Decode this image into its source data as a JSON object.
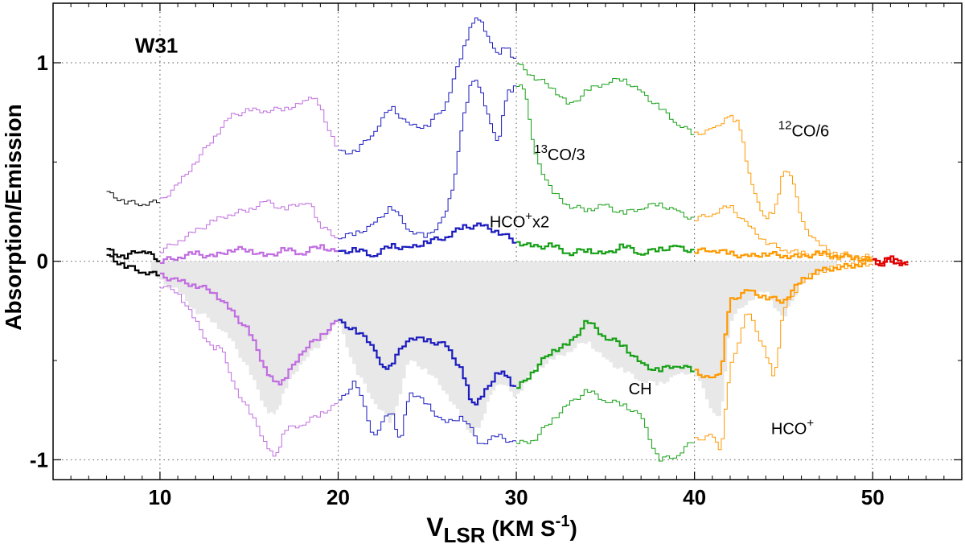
{
  "chart_data": {
    "type": "line",
    "title": "W31",
    "xlabel": {
      "main": "V",
      "sub": "LSR",
      "paren_open": " (KM S",
      "sup": "-1",
      "paren_close": ")"
    },
    "ylabel": "Absorption/Emission",
    "xlim": [
      4,
      55
    ],
    "ylim": [
      -1.1,
      1.3
    ],
    "x_major_ticks": [
      10,
      20,
      30,
      40,
      50
    ],
    "x_minor_ticks": [
      5,
      6,
      7,
      8,
      9,
      11,
      12,
      13,
      14,
      15,
      16,
      17,
      18,
      19,
      21,
      22,
      23,
      24,
      25,
      26,
      27,
      28,
      29,
      31,
      32,
      33,
      34,
      35,
      36,
      37,
      38,
      39,
      41,
      42,
      43,
      44,
      45,
      46,
      47,
      48,
      49,
      51,
      52,
      53,
      54
    ],
    "y_major_ticks": [
      -1,
      0,
      1
    ],
    "y_minor_ticks": [
      -0.5,
      0.5
    ],
    "x_tick_labels": [
      "10",
      "20",
      "30",
      "40",
      "50"
    ],
    "y_tick_labels": [
      "-1",
      "0",
      "1"
    ],
    "grid": true,
    "segment_colors": [
      {
        "range": [
          7,
          10
        ],
        "color": "#000000"
      },
      {
        "range": [
          10,
          20
        ],
        "color": "#c06de0"
      },
      {
        "range": [
          20,
          30
        ],
        "color": "#1b1bbf"
      },
      {
        "range": [
          30,
          40
        ],
        "color": "#16a016"
      },
      {
        "range": [
          40,
          50
        ],
        "color": "#ff9900"
      },
      {
        "range": [
          50,
          52
        ],
        "color": "#e00000"
      }
    ],
    "fill_color": "#e8e8e8",
    "series": [
      {
        "id": "12co",
        "label": "12CO/6",
        "style": "thin",
        "x": [
          7,
          8,
          9,
          10,
          11,
          12,
          13,
          14,
          15,
          16,
          17,
          18,
          18.5,
          19,
          20,
          21,
          22,
          23,
          24,
          25,
          26,
          27,
          27.5,
          28,
          28.5,
          29,
          29.5,
          30,
          31,
          32,
          33,
          34,
          35,
          36,
          37,
          38,
          39,
          40,
          41,
          41.5,
          42,
          42.5,
          43,
          43.5,
          44,
          44.5,
          45,
          45.5,
          46,
          47,
          48,
          49,
          50
        ],
        "y": [
          0.35,
          0.3,
          0.29,
          0.3,
          0.38,
          0.5,
          0.62,
          0.73,
          0.76,
          0.76,
          0.77,
          0.79,
          0.84,
          0.78,
          0.55,
          0.55,
          0.65,
          0.78,
          0.68,
          0.68,
          0.78,
          1.05,
          1.2,
          1.23,
          1.1,
          1.05,
          1.08,
          1.0,
          0.93,
          0.88,
          0.78,
          0.86,
          0.9,
          0.92,
          0.85,
          0.78,
          0.7,
          0.64,
          0.66,
          0.7,
          0.73,
          0.7,
          0.48,
          0.3,
          0.22,
          0.25,
          0.45,
          0.44,
          0.2,
          0.08,
          0.04,
          0.03,
          0.02
        ]
      },
      {
        "id": "13co",
        "label": "13CO/3",
        "style": "thin",
        "x": [
          10,
          11,
          12,
          13,
          14,
          15,
          16,
          17,
          18,
          18.5,
          19,
          20,
          21,
          22,
          23,
          24,
          25,
          26,
          26.5,
          27,
          27.5,
          28,
          28.5,
          29,
          29.5,
          30,
          30.5,
          31,
          32,
          33,
          34,
          35,
          36,
          37,
          38,
          39,
          40,
          41,
          42,
          43,
          44,
          45,
          46,
          47,
          48,
          49,
          50
        ],
        "y": [
          0.05,
          0.1,
          0.15,
          0.2,
          0.24,
          0.26,
          0.3,
          0.26,
          0.3,
          0.28,
          0.18,
          0.12,
          0.14,
          0.18,
          0.28,
          0.16,
          0.12,
          0.22,
          0.4,
          0.7,
          0.92,
          0.88,
          0.7,
          0.6,
          0.85,
          0.88,
          0.88,
          0.55,
          0.35,
          0.28,
          0.26,
          0.28,
          0.24,
          0.27,
          0.29,
          0.25,
          0.21,
          0.24,
          0.28,
          0.18,
          0.1,
          0.06,
          0.04,
          0.03,
          0.02,
          0.02,
          0.01
        ]
      },
      {
        "id": "hcox2",
        "label": "HCO+x2",
        "style": "thick",
        "x": [
          7,
          8,
          9,
          9.5,
          10,
          11,
          12,
          13,
          14,
          15,
          16,
          17,
          18,
          19,
          20,
          21,
          22,
          23,
          24,
          25,
          26,
          27,
          28,
          29,
          30,
          31,
          32,
          33,
          34,
          35,
          36,
          37,
          38,
          39,
          40,
          41,
          42,
          43,
          44,
          45,
          46,
          47,
          48,
          49,
          50,
          50.5,
          51,
          51.5,
          52
        ],
        "y": [
          0.06,
          0.02,
          0.06,
          0.03,
          0.0,
          0.02,
          0.04,
          0.02,
          0.06,
          0.06,
          0.02,
          0.06,
          0.04,
          0.08,
          0.04,
          0.06,
          0.03,
          0.08,
          0.06,
          0.1,
          0.12,
          0.17,
          0.18,
          0.15,
          0.1,
          0.07,
          0.08,
          0.04,
          0.06,
          0.03,
          0.08,
          0.04,
          0.06,
          0.07,
          0.05,
          0.06,
          0.04,
          0.02,
          0.04,
          0.03,
          0.02,
          0.04,
          0.03,
          0.02,
          0.0,
          -0.02,
          0.03,
          -0.03,
          0.0
        ]
      },
      {
        "id": "ch",
        "label": "CH",
        "style": "thick",
        "x": [
          7,
          8,
          9,
          10,
          11,
          12,
          13,
          14,
          15,
          16,
          16.5,
          17,
          18,
          19,
          20,
          21,
          22,
          22.5,
          23,
          24,
          25,
          26,
          27,
          27.5,
          28,
          29,
          29.5,
          30,
          31,
          32,
          33,
          34,
          35,
          36,
          37,
          38,
          39,
          40,
          41,
          41.5,
          42,
          43,
          44,
          45,
          46,
          47,
          48,
          49,
          50,
          51,
          52
        ],
        "y": [
          0.03,
          -0.02,
          -0.05,
          -0.07,
          -0.1,
          -0.12,
          -0.15,
          -0.25,
          -0.35,
          -0.55,
          -0.62,
          -0.6,
          -0.45,
          -0.38,
          -0.3,
          -0.35,
          -0.42,
          -0.55,
          -0.52,
          -0.38,
          -0.4,
          -0.42,
          -0.55,
          -0.72,
          -0.7,
          -0.55,
          -0.58,
          -0.65,
          -0.55,
          -0.45,
          -0.42,
          -0.3,
          -0.38,
          -0.42,
          -0.52,
          -0.55,
          -0.52,
          -0.55,
          -0.6,
          -0.55,
          -0.2,
          -0.15,
          -0.18,
          -0.2,
          -0.1,
          -0.05,
          -0.03,
          -0.02,
          0.0,
          0.0,
          0.0
        ]
      },
      {
        "id": "hco",
        "label": "HCO+",
        "style": "thin",
        "x": [
          10,
          11,
          12,
          13,
          13.5,
          14,
          15,
          16,
          16.5,
          17,
          18,
          19,
          20,
          21,
          22,
          23,
          23.5,
          24,
          25,
          26,
          27,
          28,
          29,
          30,
          31,
          32,
          33,
          34,
          35,
          36,
          37,
          38,
          39,
          40,
          41,
          41.5,
          42,
          43,
          44,
          44.5,
          45,
          46,
          47,
          48,
          49,
          50
        ],
        "y": [
          -0.12,
          -0.15,
          -0.3,
          -0.45,
          -0.42,
          -0.6,
          -0.75,
          -0.92,
          -1.0,
          -0.85,
          -0.82,
          -0.77,
          -0.72,
          -0.6,
          -0.88,
          -0.75,
          -0.92,
          -0.65,
          -0.72,
          -0.82,
          -0.78,
          -0.92,
          -0.88,
          -0.92,
          -0.9,
          -0.8,
          -0.72,
          -0.65,
          -0.7,
          -0.72,
          -0.78,
          -1.0,
          -0.98,
          -0.9,
          -0.88,
          -0.95,
          -0.55,
          -0.25,
          -0.45,
          -0.6,
          -0.25,
          -0.1,
          -0.05,
          -0.03,
          -0.02,
          -0.01
        ]
      }
    ],
    "absorption_fill": {
      "x": [
        9.5,
        10,
        11,
        12,
        13,
        14,
        15,
        16,
        16.5,
        17,
        18,
        19,
        20,
        21,
        22,
        23,
        24,
        25,
        26,
        27,
        27.5,
        28,
        28.5,
        29,
        30,
        31,
        32,
        33,
        34,
        35,
        36,
        37,
        38,
        39,
        40,
        41,
        41.5,
        42,
        43,
        44,
        45,
        46,
        47,
        48
      ],
      "y": [
        -0.05,
        -0.1,
        -0.15,
        -0.25,
        -0.3,
        -0.4,
        -0.55,
        -0.75,
        -0.78,
        -0.65,
        -0.5,
        -0.42,
        -0.3,
        -0.55,
        -0.7,
        -0.82,
        -0.5,
        -0.55,
        -0.65,
        -0.8,
        -0.88,
        -0.82,
        -0.7,
        -0.6,
        -0.68,
        -0.55,
        -0.5,
        -0.45,
        -0.4,
        -0.5,
        -0.55,
        -0.6,
        -0.62,
        -0.58,
        -0.55,
        -0.75,
        -0.8,
        -0.3,
        -0.2,
        -0.15,
        -0.3,
        -0.1,
        -0.05,
        -0.02
      ]
    },
    "annotations": [
      {
        "id": "label-w31",
        "text": "W31",
        "x": 8.6,
        "y": 1.05,
        "size": "large",
        "bold": true
      },
      {
        "id": "label-12co",
        "pre": "12",
        "main": "CO/6",
        "x": 44.7,
        "y": 0.63
      },
      {
        "id": "label-13co",
        "pre": "13",
        "main": "CO/3",
        "x": 31.0,
        "y": 0.51
      },
      {
        "id": "label-hcox2",
        "main": "HCO",
        "sup": "+",
        "post": "x2",
        "x": 28.5,
        "y": 0.17
      },
      {
        "id": "label-ch",
        "main": "CH",
        "x": 36.3,
        "y": -0.67
      },
      {
        "id": "label-hco",
        "main": "HCO",
        "sup": "+",
        "x": 44.3,
        "y": -0.87
      }
    ]
  }
}
